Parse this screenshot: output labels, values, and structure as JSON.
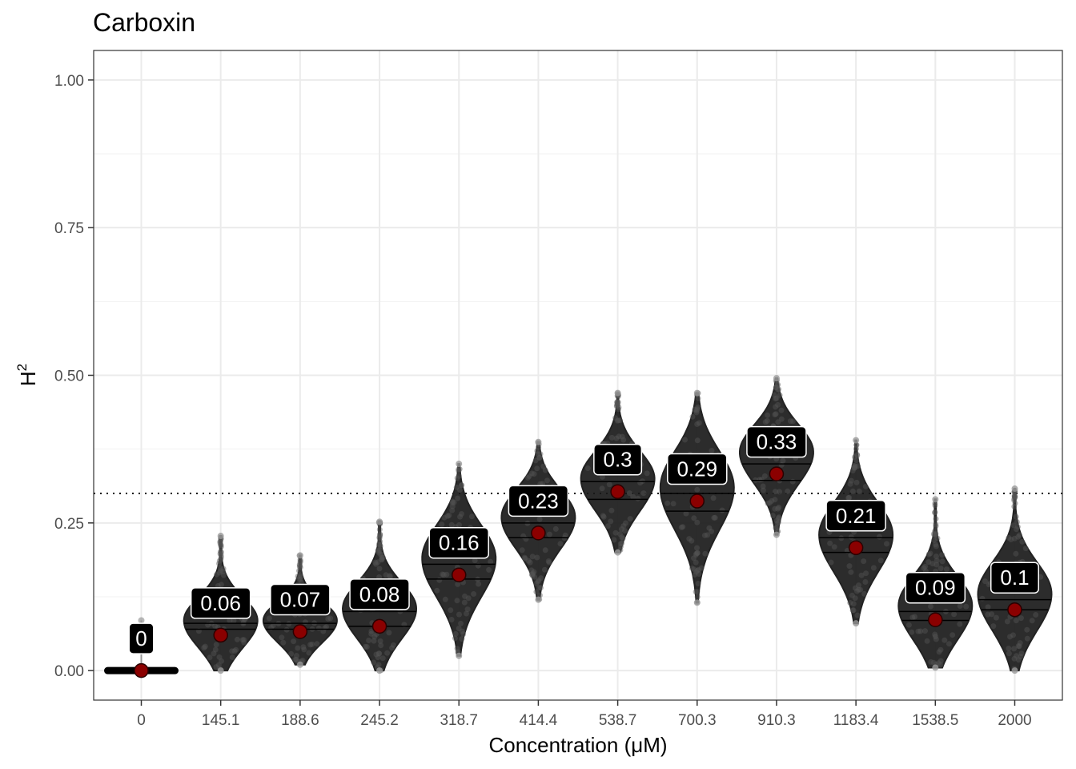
{
  "chart_data": {
    "type": "violin",
    "title": "Carboxin",
    "xlabel": "Concentration (μM)",
    "ylabel": "H",
    "ylabel_superscript": "2",
    "ylim": [
      -0.05,
      1.05
    ],
    "yticks": [
      0.0,
      0.25,
      0.5,
      0.75,
      1.0
    ],
    "ytick_labels": [
      "0.00",
      "0.25",
      "0.50",
      "0.75",
      "1.00"
    ],
    "reference_line": 0.3,
    "categories": [
      "0",
      "145.1",
      "188.6",
      "245.2",
      "318.7",
      "414.4",
      "538.7",
      "700.3",
      "910.3",
      "1183.4",
      "1538.5",
      "2000"
    ],
    "means": [
      0.0,
      0.06,
      0.066,
      0.075,
      0.162,
      0.233,
      0.303,
      0.287,
      0.333,
      0.208,
      0.086,
      0.103
    ],
    "labels": [
      "0",
      "0.06",
      "0.07",
      "0.08",
      "0.16",
      "0.23",
      "0.3",
      "0.29",
      "0.33",
      "0.21",
      "0.09",
      "0.1"
    ],
    "mins": [
      0.0,
      0.0,
      0.01,
      0.0,
      0.025,
      0.12,
      0.2,
      0.115,
      0.23,
      0.08,
      0.005,
      0.0
    ],
    "maxs": [
      0.085,
      0.228,
      0.195,
      0.252,
      0.35,
      0.387,
      0.47,
      0.47,
      0.495,
      0.39,
      0.29,
      0.308
    ],
    "medians": [
      0.0,
      0.062,
      0.067,
      0.075,
      0.155,
      0.225,
      0.29,
      0.272,
      0.322,
      0.198,
      0.085,
      0.103
    ],
    "modes": [
      0.0,
      0.085,
      0.085,
      0.105,
      0.19,
      0.26,
      0.325,
      0.31,
      0.37,
      0.23,
      0.11,
      0.13
    ],
    "q1": [
      0.0,
      0.07,
      0.07,
      0.075,
      0.155,
      0.225,
      0.29,
      0.27,
      0.322,
      0.2,
      0.085,
      0.103
    ],
    "q3": [
      0.0,
      0.08,
      0.08,
      0.1,
      0.18,
      0.25,
      0.32,
      0.3,
      0.35,
      0.225,
      0.1,
      0.12
    ],
    "outlier_lows": [
      0.0,
      0.0,
      0.01,
      0.0,
      0.025,
      0.12,
      0.2,
      0.115,
      0.23,
      0.08,
      0.005,
      0.0
    ],
    "outlier_highs": [
      0.085,
      0.228,
      0.195,
      0.252,
      0.35,
      0.387,
      0.47,
      0.47,
      0.495,
      0.39,
      0.29,
      0.308
    ],
    "colors": {
      "violin": "#000000",
      "mean_point": "#8b0000",
      "label_bg": "#000000",
      "label_text": "#ffffff",
      "grid": "#ebebeb"
    }
  }
}
